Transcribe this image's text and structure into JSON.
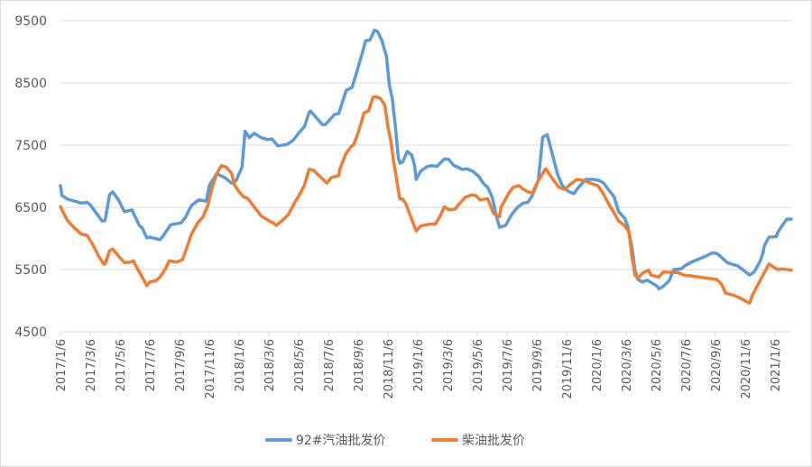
{
  "chart_data": {
    "type": "line",
    "title": "",
    "xlabel": "",
    "ylabel": "",
    "x_unit": "months since 2017/1/6",
    "xlim": [
      0,
      49.1
    ],
    "ylim": [
      4500,
      9500
    ],
    "yticks": [
      4500,
      5500,
      6500,
      7500,
      8500,
      9500
    ],
    "ytick_labels": [
      "4500",
      "5500",
      "6500",
      "7500",
      "8500",
      "9500"
    ],
    "xtick_months": [
      0,
      2,
      4,
      6,
      8,
      10,
      12,
      14,
      16,
      18,
      20,
      22,
      24,
      26,
      28,
      30,
      32,
      34,
      36,
      38,
      40,
      42,
      44,
      46,
      48
    ],
    "xtick_labels": [
      "2017/1/6",
      "2017/3/6",
      "2017/5/6",
      "2017/7/6",
      "2017/9/6",
      "2017/11/6",
      "2018/1/6",
      "2018/3/6",
      "2018/5/6",
      "2018/7/6",
      "2018/9/6",
      "2018/11/6",
      "2019/1/6",
      "2019/3/6",
      "2019/5/6",
      "2019/7/6",
      "2019/9/6",
      "2019/11/6",
      "2020/1/6",
      "2020/3/6",
      "2020/5/6",
      "2020/7/6",
      "2020/9/6",
      "2020/11/6",
      "2021/1/6"
    ],
    "grid": true,
    "legend_position": "bottom",
    "series": [
      {
        "name": "92#汽油批发价",
        "color": "#5B9BD5",
        "points": [
          [
            0,
            6850
          ],
          [
            0.1,
            6690
          ],
          [
            0.5,
            6630
          ],
          [
            1.4,
            6570
          ],
          [
            1.8,
            6580
          ],
          [
            2.0,
            6540
          ],
          [
            2.8,
            6280
          ],
          [
            3.0,
            6290
          ],
          [
            3.3,
            6700
          ],
          [
            3.5,
            6750
          ],
          [
            3.9,
            6620
          ],
          [
            4.3,
            6430
          ],
          [
            4.8,
            6460
          ],
          [
            5.0,
            6360
          ],
          [
            5.3,
            6210
          ],
          [
            5.5,
            6170
          ],
          [
            5.8,
            6010
          ],
          [
            6.0,
            6020
          ],
          [
            6.7,
            5980
          ],
          [
            6.9,
            6040
          ],
          [
            7.4,
            6220
          ],
          [
            8.1,
            6250
          ],
          [
            8.4,
            6340
          ],
          [
            8.8,
            6530
          ],
          [
            9.3,
            6620
          ],
          [
            9.8,
            6600
          ],
          [
            10.0,
            6850
          ],
          [
            10.5,
            7040
          ],
          [
            11.1,
            6970
          ],
          [
            11.5,
            6890
          ],
          [
            11.8,
            6930
          ],
          [
            12.2,
            7150
          ],
          [
            12.4,
            7720
          ],
          [
            12.7,
            7620
          ],
          [
            13.0,
            7690
          ],
          [
            13.5,
            7620
          ],
          [
            13.9,
            7590
          ],
          [
            14.2,
            7600
          ],
          [
            14.6,
            7490
          ],
          [
            15.2,
            7510
          ],
          [
            15.6,
            7570
          ],
          [
            16.1,
            7720
          ],
          [
            16.4,
            7800
          ],
          [
            16.7,
            8020
          ],
          [
            16.8,
            8050
          ],
          [
            17.6,
            7830
          ],
          [
            17.8,
            7830
          ],
          [
            18.4,
            7990
          ],
          [
            18.7,
            8010
          ],
          [
            19.2,
            8380
          ],
          [
            19.6,
            8430
          ],
          [
            19.9,
            8670
          ],
          [
            20.4,
            9080
          ],
          [
            20.5,
            9180
          ],
          [
            20.8,
            9190
          ],
          [
            21.1,
            9350
          ],
          [
            21.3,
            9330
          ],
          [
            21.6,
            9180
          ],
          [
            21.9,
            8930
          ],
          [
            22.1,
            8460
          ],
          [
            22.3,
            8240
          ],
          [
            22.5,
            7800
          ],
          [
            22.7,
            7300
          ],
          [
            22.8,
            7210
          ],
          [
            23.0,
            7230
          ],
          [
            23.3,
            7400
          ],
          [
            23.6,
            7340
          ],
          [
            23.8,
            7170
          ],
          [
            23.9,
            6950
          ],
          [
            24.2,
            7080
          ],
          [
            24.6,
            7150
          ],
          [
            24.9,
            7170
          ],
          [
            25.3,
            7160
          ],
          [
            25.8,
            7280
          ],
          [
            26.1,
            7270
          ],
          [
            26.4,
            7180
          ],
          [
            27.0,
            7110
          ],
          [
            27.3,
            7120
          ],
          [
            27.7,
            7080
          ],
          [
            28.1,
            7000
          ],
          [
            28.4,
            6890
          ],
          [
            28.7,
            6820
          ],
          [
            29.0,
            6670
          ],
          [
            29.3,
            6350
          ],
          [
            29.5,
            6180
          ],
          [
            29.9,
            6210
          ],
          [
            30.3,
            6380
          ],
          [
            30.7,
            6500
          ],
          [
            31.1,
            6570
          ],
          [
            31.4,
            6580
          ],
          [
            31.7,
            6690
          ],
          [
            32.1,
            6930
          ],
          [
            32.4,
            7630
          ],
          [
            32.7,
            7670
          ],
          [
            33.0,
            7400
          ],
          [
            33.4,
            7030
          ],
          [
            33.7,
            6860
          ],
          [
            34.1,
            6760
          ],
          [
            34.5,
            6720
          ],
          [
            34.8,
            6820
          ],
          [
            35.3,
            6950
          ],
          [
            35.8,
            6950
          ],
          [
            36.2,
            6930
          ],
          [
            36.5,
            6890
          ],
          [
            36.8,
            6790
          ],
          [
            37.2,
            6670
          ],
          [
            37.5,
            6430
          ],
          [
            37.9,
            6330
          ],
          [
            38.1,
            6210
          ],
          [
            38.4,
            5850
          ],
          [
            38.6,
            5490
          ],
          [
            38.8,
            5340
          ],
          [
            39.1,
            5300
          ],
          [
            39.4,
            5330
          ],
          [
            39.7,
            5290
          ],
          [
            40.1,
            5230
          ],
          [
            40.2,
            5190
          ],
          [
            40.5,
            5230
          ],
          [
            40.9,
            5320
          ],
          [
            41.2,
            5500
          ],
          [
            41.7,
            5510
          ],
          [
            42.0,
            5570
          ],
          [
            42.5,
            5630
          ],
          [
            42.9,
            5670
          ],
          [
            43.3,
            5710
          ],
          [
            43.8,
            5770
          ],
          [
            44.1,
            5760
          ],
          [
            44.4,
            5700
          ],
          [
            44.8,
            5610
          ],
          [
            45.5,
            5560
          ],
          [
            45.9,
            5490
          ],
          [
            46.3,
            5410
          ],
          [
            46.6,
            5460
          ],
          [
            47.0,
            5630
          ],
          [
            47.2,
            5770
          ],
          [
            47.3,
            5890
          ],
          [
            47.6,
            6020
          ],
          [
            48.1,
            6030
          ],
          [
            48.2,
            6100
          ],
          [
            48.5,
            6210
          ],
          [
            48.8,
            6310
          ],
          [
            49.1,
            6310
          ]
        ]
      },
      {
        "name": "柴油批发价",
        "color": "#ED7D31",
        "points": [
          [
            0,
            6510
          ],
          [
            0.2,
            6410
          ],
          [
            0.5,
            6280
          ],
          [
            0.9,
            6180
          ],
          [
            1.4,
            6070
          ],
          [
            1.8,
            6050
          ],
          [
            2.2,
            5890
          ],
          [
            2.6,
            5700
          ],
          [
            2.9,
            5590
          ],
          [
            3.0,
            5590
          ],
          [
            3.3,
            5800
          ],
          [
            3.5,
            5830
          ],
          [
            3.9,
            5720
          ],
          [
            4.3,
            5610
          ],
          [
            4.7,
            5620
          ],
          [
            4.9,
            5640
          ],
          [
            5.2,
            5500
          ],
          [
            5.5,
            5380
          ],
          [
            5.8,
            5240
          ],
          [
            6.0,
            5300
          ],
          [
            6.4,
            5320
          ],
          [
            6.7,
            5380
          ],
          [
            7.1,
            5530
          ],
          [
            7.3,
            5640
          ],
          [
            7.8,
            5620
          ],
          [
            8.2,
            5660
          ],
          [
            8.5,
            5860
          ],
          [
            8.8,
            6070
          ],
          [
            9.2,
            6240
          ],
          [
            9.6,
            6360
          ],
          [
            9.9,
            6530
          ],
          [
            10.2,
            6830
          ],
          [
            10.5,
            7040
          ],
          [
            10.8,
            7170
          ],
          [
            11.1,
            7150
          ],
          [
            11.5,
            7050
          ],
          [
            11.7,
            6860
          ],
          [
            12.0,
            6750
          ],
          [
            12.3,
            6670
          ],
          [
            12.6,
            6640
          ],
          [
            13.0,
            6510
          ],
          [
            13.5,
            6360
          ],
          [
            13.9,
            6300
          ],
          [
            14.3,
            6250
          ],
          [
            14.5,
            6210
          ],
          [
            15.0,
            6310
          ],
          [
            15.3,
            6380
          ],
          [
            15.7,
            6560
          ],
          [
            16.1,
            6720
          ],
          [
            16.4,
            6860
          ],
          [
            16.7,
            7110
          ],
          [
            17.0,
            7100
          ],
          [
            17.5,
            6980
          ],
          [
            17.9,
            6890
          ],
          [
            18.2,
            6980
          ],
          [
            18.7,
            7010
          ],
          [
            18.8,
            7130
          ],
          [
            19.2,
            7370
          ],
          [
            19.5,
            7470
          ],
          [
            19.7,
            7510
          ],
          [
            19.9,
            7630
          ],
          [
            20.2,
            7850
          ],
          [
            20.4,
            8020
          ],
          [
            20.7,
            8050
          ],
          [
            21.0,
            8270
          ],
          [
            21.2,
            8280
          ],
          [
            21.5,
            8250
          ],
          [
            21.8,
            8140
          ],
          [
            22.0,
            7800
          ],
          [
            22.2,
            7560
          ],
          [
            22.4,
            7220
          ],
          [
            22.6,
            6930
          ],
          [
            22.8,
            6640
          ],
          [
            23.0,
            6630
          ],
          [
            23.2,
            6560
          ],
          [
            23.6,
            6310
          ],
          [
            23.9,
            6120
          ],
          [
            24.2,
            6200
          ],
          [
            24.8,
            6230
          ],
          [
            25.2,
            6230
          ],
          [
            25.5,
            6360
          ],
          [
            25.8,
            6510
          ],
          [
            26.1,
            6460
          ],
          [
            26.5,
            6470
          ],
          [
            26.8,
            6560
          ],
          [
            27.2,
            6660
          ],
          [
            27.6,
            6700
          ],
          [
            27.9,
            6690
          ],
          [
            28.2,
            6620
          ],
          [
            28.7,
            6640
          ],
          [
            29.1,
            6400
          ],
          [
            29.5,
            6350
          ],
          [
            29.6,
            6500
          ],
          [
            30.1,
            6720
          ],
          [
            30.4,
            6820
          ],
          [
            30.8,
            6850
          ],
          [
            31.1,
            6790
          ],
          [
            31.4,
            6750
          ],
          [
            31.7,
            6730
          ],
          [
            32.1,
            6930
          ],
          [
            32.6,
            7120
          ],
          [
            33.0,
            6980
          ],
          [
            33.5,
            6820
          ],
          [
            33.9,
            6790
          ],
          [
            34.2,
            6860
          ],
          [
            34.7,
            6950
          ],
          [
            35.2,
            6930
          ],
          [
            35.6,
            6890
          ],
          [
            36.1,
            6850
          ],
          [
            36.4,
            6750
          ],
          [
            36.8,
            6570
          ],
          [
            37.2,
            6410
          ],
          [
            37.5,
            6280
          ],
          [
            37.9,
            6210
          ],
          [
            38.2,
            6100
          ],
          [
            38.4,
            5700
          ],
          [
            38.6,
            5410
          ],
          [
            38.8,
            5360
          ],
          [
            39.1,
            5440
          ],
          [
            39.5,
            5490
          ],
          [
            39.7,
            5410
          ],
          [
            40.2,
            5380
          ],
          [
            40.5,
            5460
          ],
          [
            41.5,
            5450
          ],
          [
            41.9,
            5410
          ],
          [
            42.3,
            5400
          ],
          [
            43.2,
            5370
          ],
          [
            44.1,
            5340
          ],
          [
            44.4,
            5270
          ],
          [
            44.7,
            5120
          ],
          [
            45.2,
            5090
          ],
          [
            45.6,
            5050
          ],
          [
            46.3,
            4960
          ],
          [
            46.5,
            5090
          ],
          [
            46.8,
            5230
          ],
          [
            47.2,
            5410
          ],
          [
            47.6,
            5590
          ],
          [
            47.9,
            5540
          ],
          [
            48.2,
            5500
          ],
          [
            48.5,
            5510
          ],
          [
            49.1,
            5490
          ]
        ]
      }
    ]
  }
}
